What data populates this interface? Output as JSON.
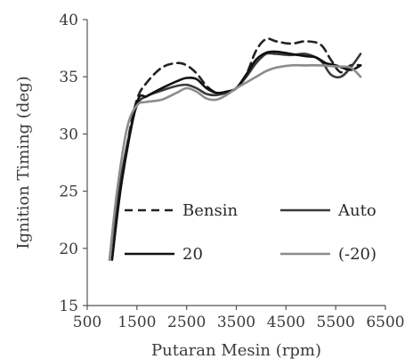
{
  "chart_data": {
    "type": "line",
    "title": "",
    "xlabel": "Putaran Mesin (rpm)",
    "ylabel": "Ignition Timing (deg)",
    "xlim": [
      500,
      6500
    ],
    "ylim": [
      15,
      40
    ],
    "xticks": [
      500,
      1500,
      2500,
      3500,
      4500,
      5500,
      6500
    ],
    "yticks": [
      15,
      20,
      25,
      30,
      35,
      40
    ],
    "grid": false,
    "legend_position": "bottom-inside",
    "series": [
      {
        "name": "Bensin",
        "color": "#222222",
        "dashed": true,
        "points": [
          [
            1100,
            23
          ],
          [
            1300,
            29
          ],
          [
            1500,
            33
          ],
          [
            1700,
            34.5
          ],
          [
            2000,
            35.8
          ],
          [
            2300,
            36.2
          ],
          [
            2500,
            36
          ],
          [
            2700,
            35.3
          ],
          [
            2900,
            34.2
          ],
          [
            3100,
            33.6
          ],
          [
            3300,
            33.6
          ],
          [
            3500,
            34
          ],
          [
            3700,
            35.2
          ],
          [
            3900,
            37.3
          ],
          [
            4100,
            38.3
          ],
          [
            4300,
            38.1
          ],
          [
            4600,
            37.9
          ],
          [
            4900,
            38.1
          ],
          [
            5200,
            37.8
          ],
          [
            5400,
            36.5
          ],
          [
            5600,
            35.4
          ],
          [
            5800,
            36
          ],
          [
            6000,
            36
          ]
        ]
      },
      {
        "name": "Auto",
        "color": "#3a3a3a",
        "dashed": false,
        "points": [
          [
            950,
            19
          ],
          [
            1100,
            24
          ],
          [
            1300,
            29
          ],
          [
            1500,
            32.5
          ],
          [
            1700,
            33.3
          ],
          [
            2000,
            33.8
          ],
          [
            2300,
            34.2
          ],
          [
            2500,
            34.3
          ],
          [
            2700,
            34
          ],
          [
            2900,
            33.5
          ],
          [
            3100,
            33.4
          ],
          [
            3300,
            33.6
          ],
          [
            3500,
            34
          ],
          [
            3700,
            35
          ],
          [
            3900,
            36.2
          ],
          [
            4100,
            37
          ],
          [
            4300,
            37
          ],
          [
            4600,
            36.9
          ],
          [
            4900,
            37
          ],
          [
            5200,
            36.4
          ],
          [
            5400,
            35.2
          ],
          [
            5600,
            35
          ],
          [
            5800,
            35.8
          ],
          [
            6000,
            37
          ]
        ]
      },
      {
        "name": "20",
        "color": "#111111",
        "dashed": false,
        "points": [
          [
            1000,
            19
          ],
          [
            1200,
            26
          ],
          [
            1500,
            32.7
          ],
          [
            1700,
            33.3
          ],
          [
            2000,
            34
          ],
          [
            2300,
            34.6
          ],
          [
            2500,
            34.9
          ],
          [
            2700,
            34.8
          ],
          [
            2900,
            34
          ],
          [
            3100,
            33.6
          ],
          [
            3300,
            33.7
          ],
          [
            3500,
            34
          ],
          [
            3700,
            35.2
          ],
          [
            3900,
            36.5
          ],
          [
            4100,
            37.1
          ],
          [
            4300,
            37.2
          ],
          [
            4600,
            37
          ],
          [
            4900,
            36.8
          ],
          [
            5100,
            36.7
          ],
          [
            5300,
            36.2
          ],
          [
            5500,
            36
          ],
          [
            5800,
            35.6
          ],
          [
            6000,
            36
          ]
        ]
      },
      {
        "name": "(-20)",
        "color": "#8c8c8c",
        "dashed": false,
        "points": [
          [
            950,
            19
          ],
          [
            1100,
            25
          ],
          [
            1300,
            30.5
          ],
          [
            1500,
            32.5
          ],
          [
            1700,
            32.8
          ],
          [
            2000,
            33
          ],
          [
            2300,
            33.6
          ],
          [
            2500,
            34
          ],
          [
            2700,
            33.7
          ],
          [
            2900,
            33.1
          ],
          [
            3100,
            33
          ],
          [
            3300,
            33.4
          ],
          [
            3500,
            34
          ],
          [
            3700,
            34.5
          ],
          [
            3900,
            35
          ],
          [
            4100,
            35.5
          ],
          [
            4300,
            35.8
          ],
          [
            4600,
            36
          ],
          [
            4900,
            36
          ],
          [
            5200,
            36
          ],
          [
            5500,
            35.9
          ],
          [
            5800,
            35.8
          ],
          [
            6000,
            35
          ]
        ]
      }
    ]
  }
}
